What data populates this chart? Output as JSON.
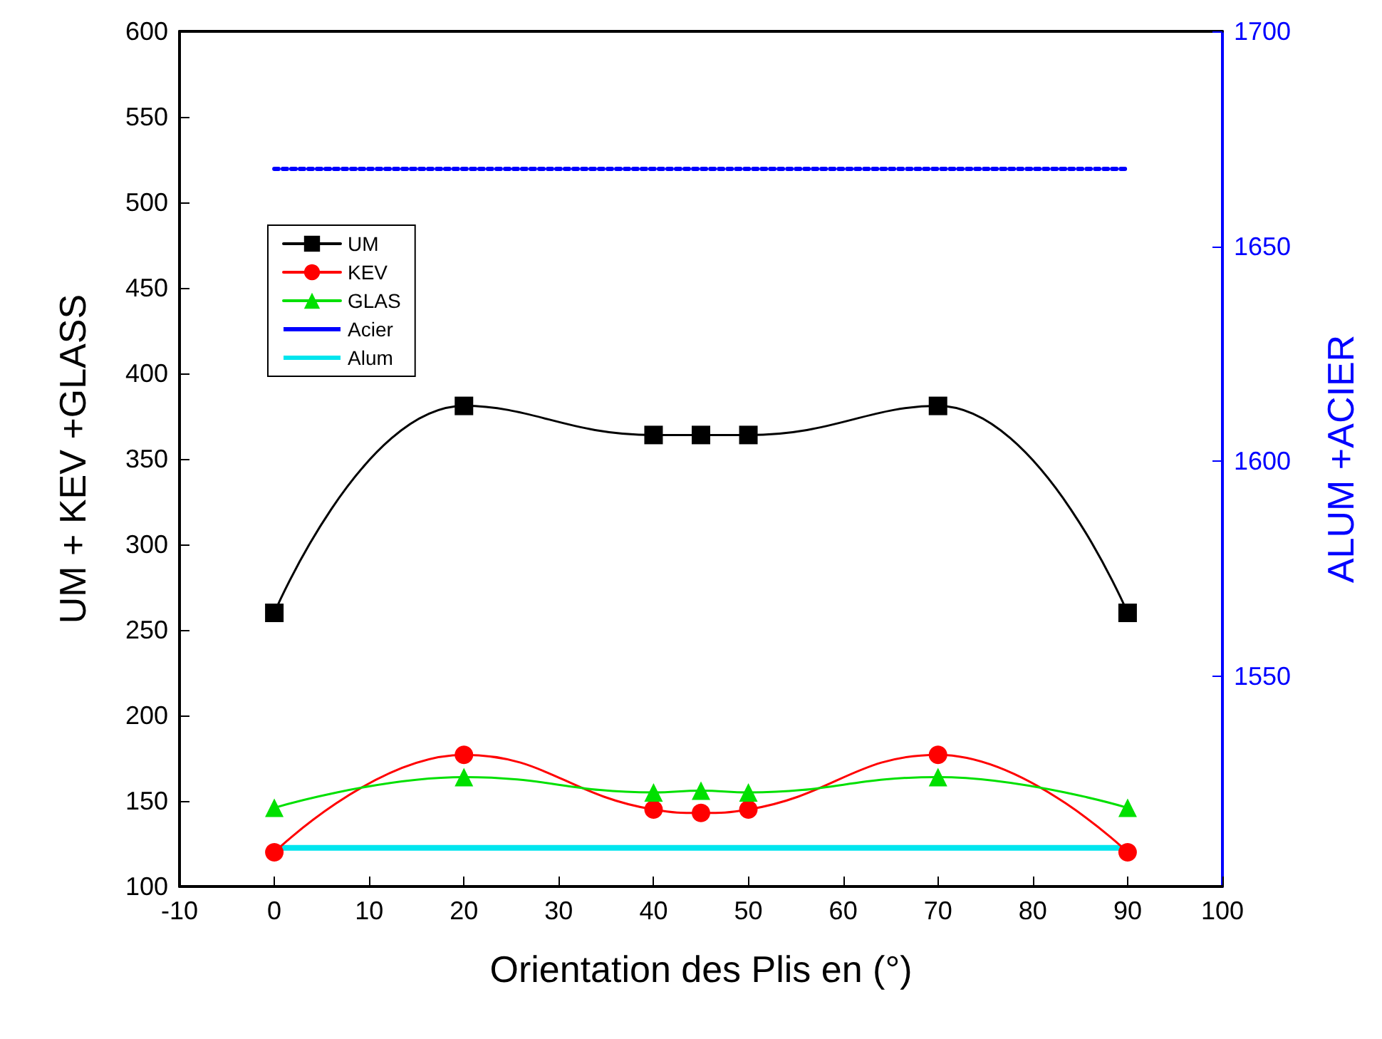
{
  "chart_data": {
    "type": "line",
    "xlabel": "Orientation des Plis en (°)",
    "ylabel": "UM + KEV +GLASS",
    "y2label": "ALUM +ACIER",
    "xlim": [
      -10,
      100
    ],
    "xticks": [
      -10,
      0,
      10,
      20,
      30,
      40,
      50,
      60,
      70,
      80,
      90,
      100
    ],
    "ylim": [
      100,
      600
    ],
    "yticks": [
      100,
      150,
      200,
      250,
      300,
      350,
      400,
      450,
      500,
      550,
      600
    ],
    "y2lim": [
      1501,
      1700
    ],
    "y2ticks": [
      1550,
      1600,
      1650,
      1700
    ],
    "grid": false,
    "legend": "top left",
    "series": [
      {
        "name": "UM",
        "color": "#000000",
        "marker": "square",
        "x": [
          0,
          20,
          40,
          45,
          50,
          70,
          90
        ],
        "values": [
          260,
          381,
          364,
          364,
          364,
          381,
          260
        ]
      },
      {
        "name": "KEV",
        "color": "#ff0000",
        "marker": "circle",
        "x": [
          0,
          20,
          40,
          45,
          50,
          70,
          90
        ],
        "values": [
          120,
          177,
          145,
          143,
          145,
          177,
          120
        ]
      },
      {
        "name": "GLAS",
        "color": "#00e000",
        "marker": "triangle",
        "x": [
          0,
          20,
          40,
          45,
          50,
          70,
          90
        ],
        "values": [
          146,
          164,
          155,
          156,
          155,
          164,
          146
        ]
      },
      {
        "name": "Acier",
        "color": "#0000ff",
        "marker": "none",
        "line_style": "dotted",
        "axis": "y2",
        "x": [
          0,
          90
        ],
        "values": [
          1668,
          1668
        ]
      },
      {
        "name": "Alum",
        "color": "#00e5ee",
        "marker": "none",
        "axis": "y2",
        "x": [
          0,
          90
        ],
        "values": [
          1510,
          1510
        ]
      }
    ]
  }
}
